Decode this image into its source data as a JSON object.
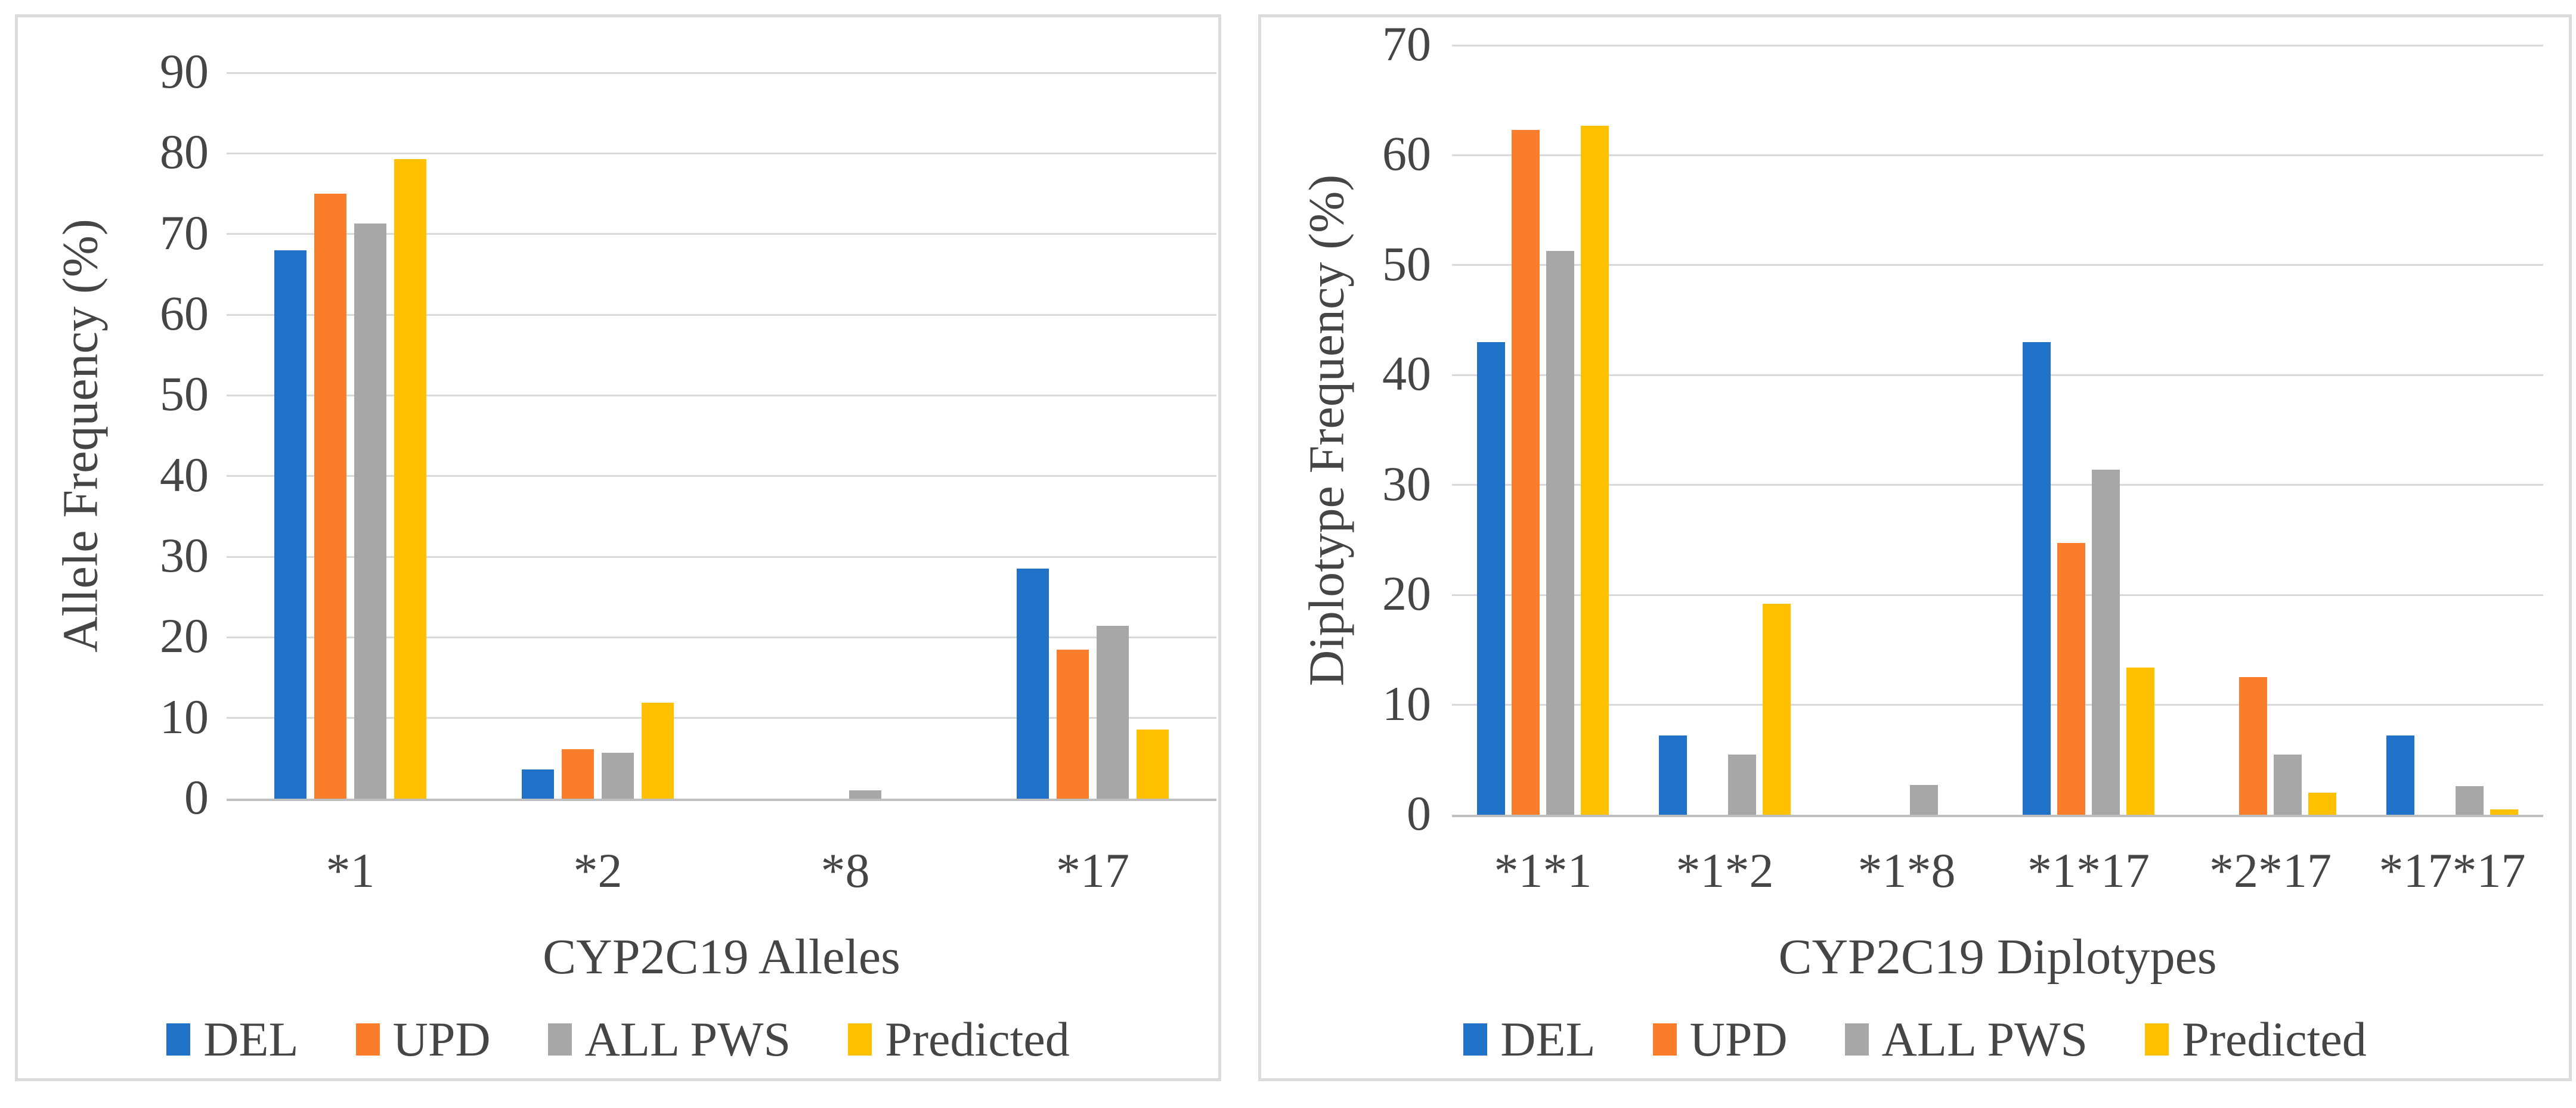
{
  "chart_data": [
    {
      "type": "bar",
      "title": "",
      "y_axis_label": "Allele Frequency (%)",
      "x_axis_label": "CYP2C19 Alleles",
      "y_min": 0,
      "y_max": 90,
      "y_step": 10,
      "y_ticks": [
        0,
        10,
        20,
        30,
        40,
        50,
        60,
        70,
        80,
        90
      ],
      "grid": "horizontal",
      "legend_position": "bottom",
      "categories": [
        "*1",
        "*2",
        "*8",
        "*17"
      ],
      "series": [
        {
          "name": "DEL",
          "color": "#1F72C8",
          "values": [
            68,
            3.6,
            0,
            28.5
          ]
        },
        {
          "name": "UPD",
          "color": "#F97D2B",
          "values": [
            75,
            6.1,
            0,
            18.5
          ]
        },
        {
          "name": "ALL PWS",
          "color": "#A7A7A7",
          "values": [
            71.3,
            5.7,
            1.0,
            21.4
          ]
        },
        {
          "name": "Predicted",
          "color": "#FFC000",
          "values": [
            79.3,
            11.9,
            0,
            8.6
          ]
        }
      ]
    },
    {
      "type": "bar",
      "title": "",
      "y_axis_label": "Diplotype Frequency (%)",
      "x_axis_label": "CYP2C19 Diplotypes",
      "y_min": 0,
      "y_max": 70,
      "y_step": 10,
      "y_ticks": [
        0,
        10,
        20,
        30,
        40,
        50,
        60,
        70
      ],
      "grid": "horizontal",
      "legend_position": "bottom",
      "categories": [
        "*1*1",
        "*1*2",
        "*1*8",
        "*1*17",
        "*2*17",
        "*17*17"
      ],
      "series": [
        {
          "name": "DEL",
          "color": "#1F72C8",
          "values": [
            43,
            7.2,
            0,
            43,
            0,
            7.2
          ]
        },
        {
          "name": "UPD",
          "color": "#F97D2B",
          "values": [
            62.3,
            0,
            0,
            24.7,
            12.5,
            0
          ]
        },
        {
          "name": "ALL PWS",
          "color": "#A7A7A7",
          "values": [
            51.3,
            5.5,
            2.7,
            31.4,
            5.5,
            2.6
          ]
        },
        {
          "name": "Predicted",
          "color": "#FFC000",
          "values": [
            62.7,
            19.2,
            0,
            13.4,
            2.0,
            0.5
          ]
        }
      ]
    }
  ],
  "colors": {
    "gridline": "#D9D9D9",
    "axis_line": "#BFBFBF",
    "panel_border": "#DBDBDB",
    "text": "#454545"
  }
}
